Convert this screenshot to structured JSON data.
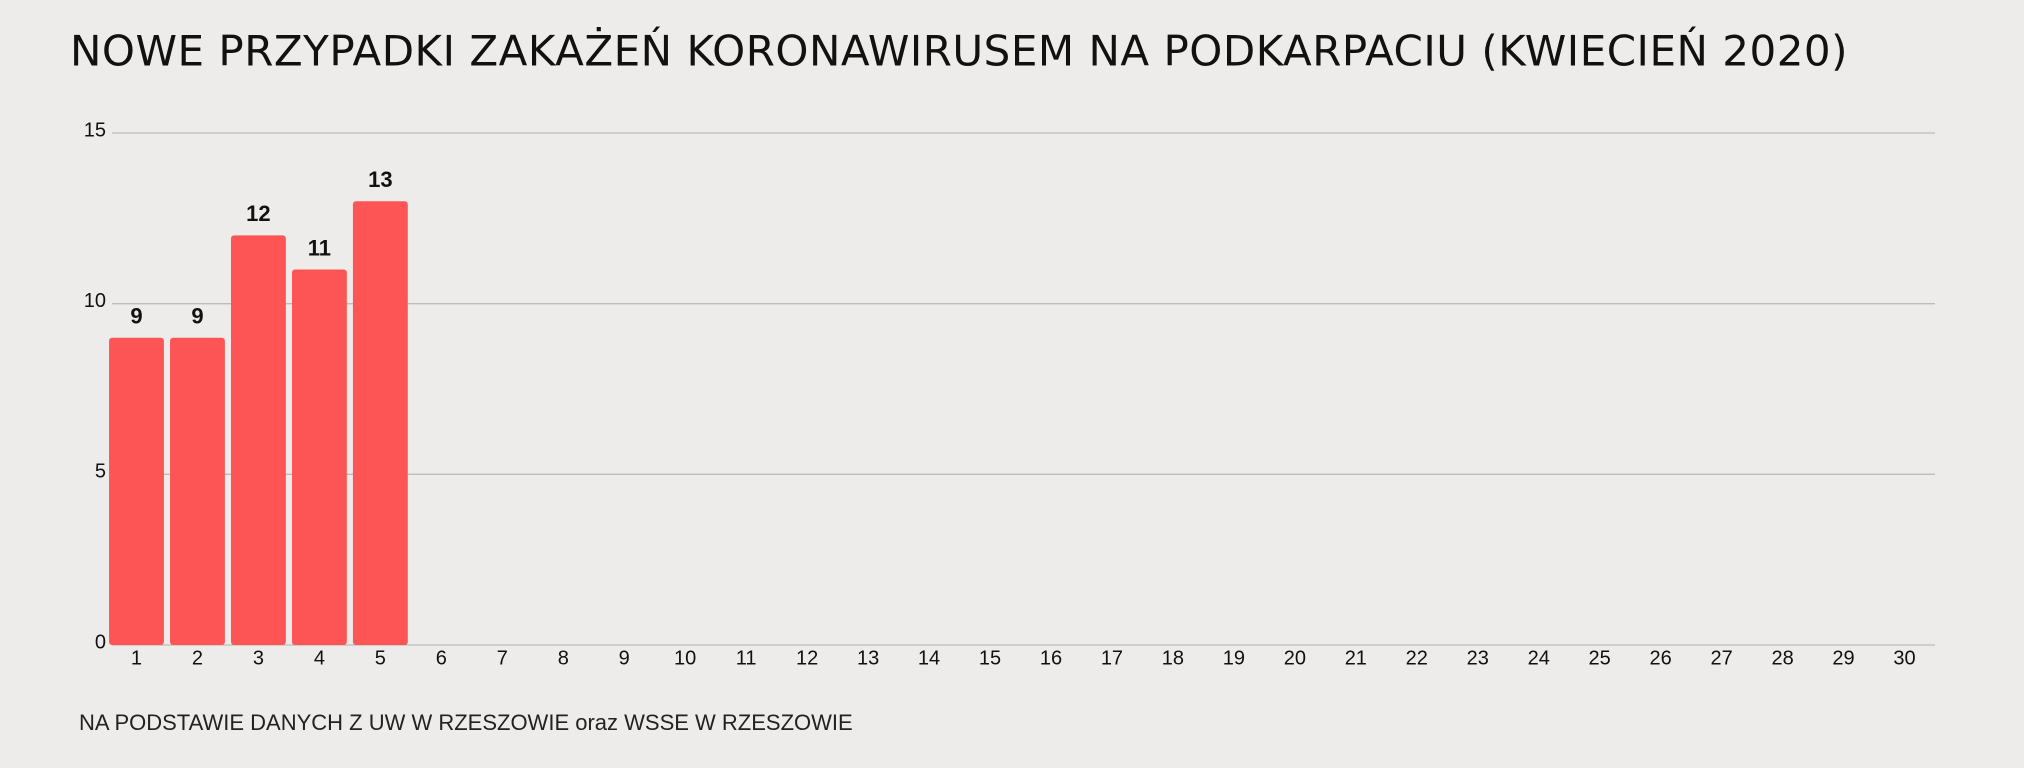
{
  "chart_data": {
    "type": "bar",
    "title": "NOWE PRZYPADKI ZAKAŻEŃ KORONAWIRUSEM NA PODKARPACIU (KWIECIEŃ 2020)",
    "source": "NA PODSTAWIE DANYCH Z UW W RZESZOWIE oraz WSSE W RZESZOWIE",
    "categories": [
      "1",
      "2",
      "3",
      "4",
      "5",
      "6",
      "7",
      "8",
      "9",
      "10",
      "11",
      "12",
      "13",
      "14",
      "15",
      "16",
      "17",
      "18",
      "19",
      "20",
      "21",
      "22",
      "23",
      "24",
      "25",
      "26",
      "27",
      "28",
      "29",
      "30"
    ],
    "values": [
      9,
      9,
      12,
      11,
      13,
      null,
      null,
      null,
      null,
      null,
      null,
      null,
      null,
      null,
      null,
      null,
      null,
      null,
      null,
      null,
      null,
      null,
      null,
      null,
      null,
      null,
      null,
      null,
      null,
      null
    ],
    "color": "#fd5555",
    "ylim": [
      0,
      15
    ],
    "yticks": [
      0,
      5,
      10,
      15
    ],
    "grid": true
  }
}
